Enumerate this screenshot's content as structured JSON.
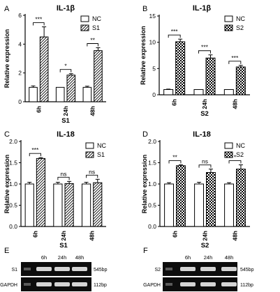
{
  "panels": [
    {
      "letter": "A",
      "title": "IL-1β",
      "ylabel": "Relative expression",
      "xlabel": "S1",
      "legend": [
        "NC",
        "S1"
      ],
      "treated_pattern": "hatch",
      "chart_data": {
        "type": "bar",
        "categories": [
          "6h",
          "24h",
          "48h"
        ],
        "ylim": [
          0,
          6
        ],
        "yticks": [
          "0",
          "2",
          "4",
          "6"
        ],
        "series": [
          {
            "name": "NC",
            "values": [
              1.0,
              1.0,
              1.0
            ],
            "errors": [
              0.1,
              0.0,
              0.08
            ]
          },
          {
            "name": "S1",
            "values": [
              4.5,
              1.85,
              3.55
            ],
            "errors": [
              0.7,
              0.1,
              0.2
            ]
          }
        ],
        "significance": [
          "***",
          "*",
          "**"
        ]
      }
    },
    {
      "letter": "B",
      "title": "IL-1β",
      "ylabel": "Relative expression",
      "xlabel": "S2",
      "legend": [
        "NC",
        "S2"
      ],
      "treated_pattern": "checker",
      "chart_data": {
        "type": "bar",
        "categories": [
          "6h",
          "24h",
          "48h"
        ],
        "ylim": [
          0,
          15
        ],
        "yticks": [
          "0",
          "5",
          "10",
          "15"
        ],
        "series": [
          {
            "name": "NC",
            "values": [
              1.0,
              1.0,
              1.0
            ],
            "errors": [
              0.08,
              0.0,
              0.0
            ]
          },
          {
            "name": "S2",
            "values": [
              10.1,
              7.0,
              5.3
            ],
            "errors": [
              0.5,
              0.6,
              0.3
            ]
          }
        ],
        "significance": [
          "***",
          "***",
          "***"
        ]
      }
    },
    {
      "letter": "C",
      "title": "IL-18",
      "ylabel": "Relative expression",
      "xlabel": "S1",
      "legend": [
        "NC",
        "S1"
      ],
      "treated_pattern": "hatch",
      "chart_data": {
        "type": "bar",
        "categories": [
          "6h",
          "24h",
          "48h"
        ],
        "ylim": [
          0,
          2
        ],
        "yticks": [
          "0.0",
          "0.5",
          "1.0",
          "1.5",
          "2.0"
        ],
        "series": [
          {
            "name": "NC",
            "values": [
              1.0,
              1.0,
              1.0
            ],
            "errors": [
              0.04,
              0.04,
              0.04
            ]
          },
          {
            "name": "S1",
            "values": [
              1.6,
              1.01,
              1.03
            ],
            "errors": [
              0.02,
              0.05,
              0.08
            ]
          }
        ],
        "significance": [
          "***",
          "ns",
          "ns"
        ]
      }
    },
    {
      "letter": "D",
      "title": "IL-18",
      "ylabel": "Relative expression",
      "xlabel": "S2",
      "legend": [
        "NC",
        "S2"
      ],
      "treated_pattern": "checker",
      "chart_data": {
        "type": "bar",
        "categories": [
          "6h",
          "24h",
          "48h"
        ],
        "ylim": [
          0,
          2
        ],
        "yticks": [
          "0.0",
          "0.5",
          "1.0",
          "1.5",
          "2.0"
        ],
        "series": [
          {
            "name": "NC",
            "values": [
              1.0,
              1.0,
              1.0
            ],
            "errors": [
              0.03,
              0.04,
              0.03
            ]
          },
          {
            "name": "S2",
            "values": [
              1.43,
              1.27,
              1.35
            ],
            "errors": [
              0.02,
              0.08,
              0.1
            ]
          }
        ],
        "significance": [
          "**",
          "ns",
          "*"
        ]
      }
    }
  ],
  "gels": [
    {
      "letter": "E",
      "timepoints": [
        "6h",
        "24h",
        "48h"
      ],
      "rows": [
        {
          "label": "S1",
          "size": "545bp"
        },
        {
          "label": "GAPDH",
          "size": "112bp"
        }
      ]
    },
    {
      "letter": "F",
      "timepoints": [
        "6h",
        "24h",
        "48h"
      ],
      "rows": [
        {
          "label": "S2",
          "size": "545bp"
        },
        {
          "label": "GAPDH",
          "size": "112bp"
        }
      ]
    }
  ]
}
